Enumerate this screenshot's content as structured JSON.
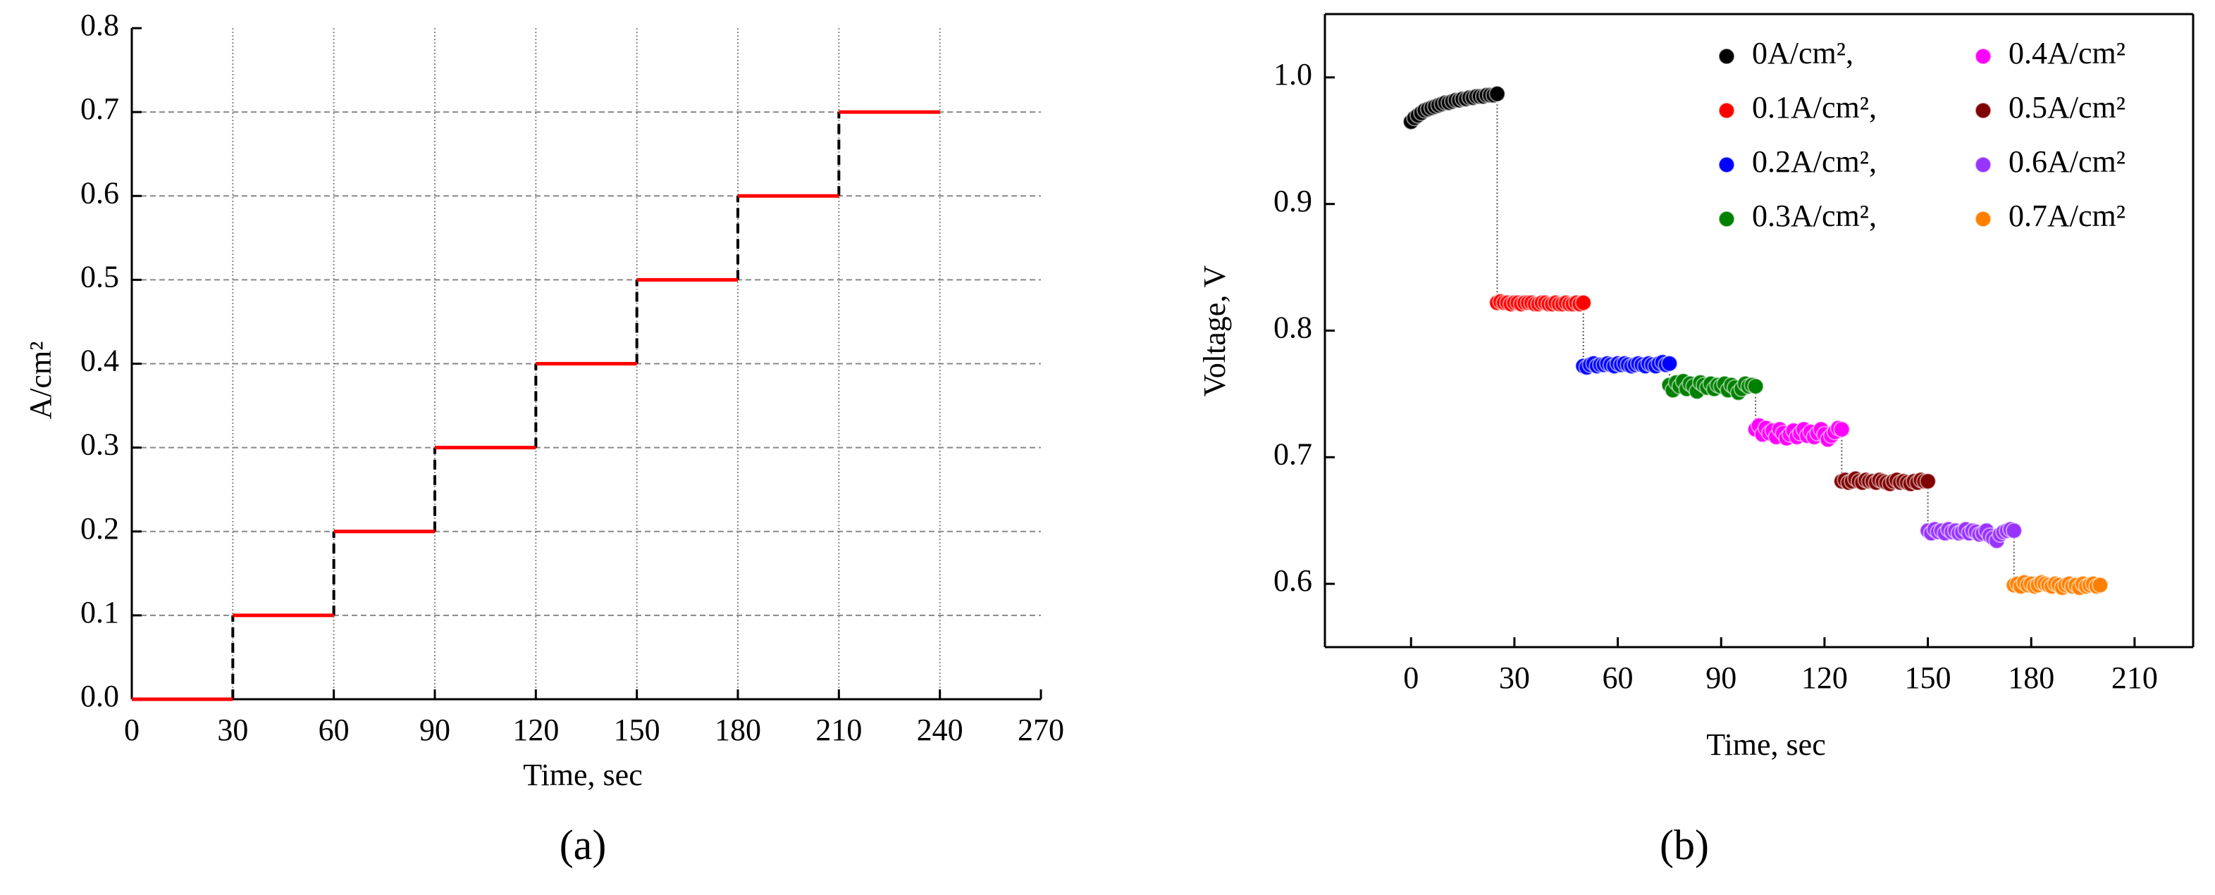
{
  "chart_data": [
    {
      "type": "step",
      "caption": "(a)",
      "xlabel": "Time, sec",
      "ylabel": "A/cm²",
      "x": [
        0,
        30,
        60,
        90,
        120,
        150,
        180,
        210
      ],
      "x_end": [
        30,
        60,
        90,
        120,
        150,
        180,
        210,
        240
      ],
      "values": [
        0,
        0.1,
        0.2,
        0.3,
        0.4,
        0.5,
        0.6,
        0.7
      ],
      "color": "#ff0000",
      "connector_color": "#000000",
      "xlim": [
        0,
        270
      ],
      "xticks": [
        0,
        30,
        60,
        90,
        120,
        150,
        180,
        210,
        240,
        270
      ],
      "ylim": [
        0,
        0.8
      ],
      "yticks": [
        {
          "value": 0,
          "label": "0.0"
        },
        0.1,
        0.2,
        0.3,
        0.4,
        0.5,
        0.6,
        0.7,
        0.8
      ],
      "grid": true
    },
    {
      "type": "scatter",
      "caption": "(b)",
      "xlabel": "Time, sec",
      "ylabel": "Voltage, V",
      "xlim": [
        -25,
        227
      ],
      "xticks": [
        0,
        30,
        60,
        90,
        120,
        150,
        180,
        210
      ],
      "ylim": [
        0.55,
        1.05
      ],
      "yticks": [
        0.6,
        0.7,
        0.8,
        0.9,
        {
          "value": 1.0,
          "label": "1.0"
        }
      ],
      "grid": false,
      "legend": "upper right",
      "series": [
        {
          "name": "0A/cm²,",
          "color": "#000000",
          "x": [
            0,
            1,
            2,
            3,
            4,
            5,
            6,
            7,
            8,
            9,
            10,
            11,
            12,
            13,
            14,
            15,
            16,
            17,
            18,
            19,
            20,
            21,
            22,
            23,
            24,
            25
          ],
          "values": [
            0.965,
            0.968,
            0.97,
            0.972,
            0.974,
            0.975,
            0.976,
            0.977,
            0.978,
            0.979,
            0.98,
            0.98,
            0.981,
            0.982,
            0.982,
            0.983,
            0.983,
            0.984,
            0.984,
            0.985,
            0.985,
            0.985,
            0.986,
            0.986,
            0.986,
            0.987
          ]
        },
        {
          "name": "0.1A/cm²,",
          "color": "#ff0000",
          "x": [
            25,
            26,
            27,
            28,
            29,
            30,
            31,
            32,
            33,
            34,
            35,
            36,
            37,
            38,
            39,
            40,
            41,
            42,
            43,
            44,
            45,
            46,
            47,
            48,
            49,
            50
          ],
          "values": [
            0.822,
            0.823,
            0.822,
            0.822,
            0.821,
            0.822,
            0.822,
            0.821,
            0.822,
            0.822,
            0.822,
            0.821,
            0.821,
            0.822,
            0.822,
            0.821,
            0.821,
            0.822,
            0.821,
            0.821,
            0.822,
            0.821,
            0.821,
            0.822,
            0.821,
            0.822
          ]
        },
        {
          "name": "0.2A/cm²,",
          "color": "#0000ff",
          "x": [
            50,
            51,
            52,
            53,
            54,
            55,
            56,
            57,
            58,
            59,
            60,
            61,
            62,
            63,
            64,
            65,
            66,
            67,
            68,
            69,
            70,
            71,
            72,
            73,
            74,
            75
          ],
          "values": [
            0.772,
            0.771,
            0.773,
            0.774,
            0.772,
            0.773,
            0.773,
            0.774,
            0.773,
            0.772,
            0.774,
            0.773,
            0.774,
            0.773,
            0.772,
            0.773,
            0.774,
            0.773,
            0.772,
            0.774,
            0.773,
            0.772,
            0.774,
            0.775,
            0.773,
            0.774
          ]
        },
        {
          "name": "0.3A/cm²,",
          "color": "#008000",
          "x": [
            75,
            76,
            77,
            78,
            79,
            80,
            81,
            82,
            83,
            84,
            85,
            86,
            87,
            88,
            89,
            90,
            91,
            92,
            93,
            94,
            95,
            96,
            97,
            98,
            99,
            100
          ],
          "values": [
            0.757,
            0.753,
            0.759,
            0.756,
            0.76,
            0.754,
            0.758,
            0.756,
            0.752,
            0.759,
            0.757,
            0.755,
            0.758,
            0.754,
            0.757,
            0.756,
            0.758,
            0.753,
            0.757,
            0.755,
            0.751,
            0.754,
            0.758,
            0.756,
            0.757,
            0.756
          ]
        },
        {
          "name": "0.4A/cm²",
          "color": "#ff00ff",
          "x": [
            100,
            101,
            102,
            103,
            104,
            105,
            106,
            107,
            108,
            109,
            110,
            111,
            112,
            113,
            114,
            115,
            116,
            117,
            118,
            119,
            120,
            121,
            122,
            123,
            124,
            125
          ],
          "values": [
            0.722,
            0.725,
            0.718,
            0.723,
            0.719,
            0.721,
            0.716,
            0.722,
            0.719,
            0.715,
            0.718,
            0.721,
            0.716,
            0.719,
            0.722,
            0.717,
            0.72,
            0.716,
            0.719,
            0.722,
            0.718,
            0.714,
            0.717,
            0.72,
            0.723,
            0.722
          ]
        },
        {
          "name": "0.5A/cm²",
          "color": "#800000",
          "x": [
            125,
            126,
            127,
            128,
            129,
            130,
            131,
            132,
            133,
            134,
            135,
            136,
            137,
            138,
            139,
            140,
            141,
            142,
            143,
            144,
            145,
            146,
            147,
            148,
            149,
            150
          ],
          "values": [
            0.681,
            0.682,
            0.68,
            0.681,
            0.683,
            0.681,
            0.68,
            0.682,
            0.681,
            0.681,
            0.68,
            0.682,
            0.681,
            0.68,
            0.679,
            0.681,
            0.682,
            0.68,
            0.681,
            0.68,
            0.679,
            0.681,
            0.68,
            0.682,
            0.681,
            0.681
          ]
        },
        {
          "name": "0.6A/cm²",
          "color": "#9933ff",
          "x": [
            150,
            151,
            152,
            153,
            154,
            155,
            156,
            157,
            158,
            159,
            160,
            161,
            162,
            163,
            164,
            165,
            166,
            167,
            168,
            169,
            170,
            171,
            172,
            173,
            174,
            175
          ],
          "values": [
            0.642,
            0.64,
            0.643,
            0.641,
            0.642,
            0.64,
            0.643,
            0.641,
            0.642,
            0.64,
            0.641,
            0.643,
            0.64,
            0.642,
            0.641,
            0.639,
            0.64,
            0.642,
            0.638,
            0.636,
            0.634,
            0.639,
            0.641,
            0.642,
            0.643,
            0.642
          ]
        },
        {
          "name": "0.7A/cm²",
          "color": "#ff8000",
          "x": [
            175,
            176,
            177,
            178,
            179,
            180,
            181,
            182,
            183,
            184,
            185,
            186,
            187,
            188,
            189,
            190,
            191,
            192,
            193,
            194,
            195,
            196,
            197,
            198,
            199,
            200
          ],
          "values": [
            0.599,
            0.6,
            0.598,
            0.601,
            0.599,
            0.6,
            0.598,
            0.599,
            0.601,
            0.6,
            0.599,
            0.598,
            0.6,
            0.599,
            0.597,
            0.599,
            0.6,
            0.598,
            0.599,
            0.597,
            0.6,
            0.598,
            0.599,
            0.6,
            0.598,
            0.599
          ]
        }
      ]
    }
  ]
}
